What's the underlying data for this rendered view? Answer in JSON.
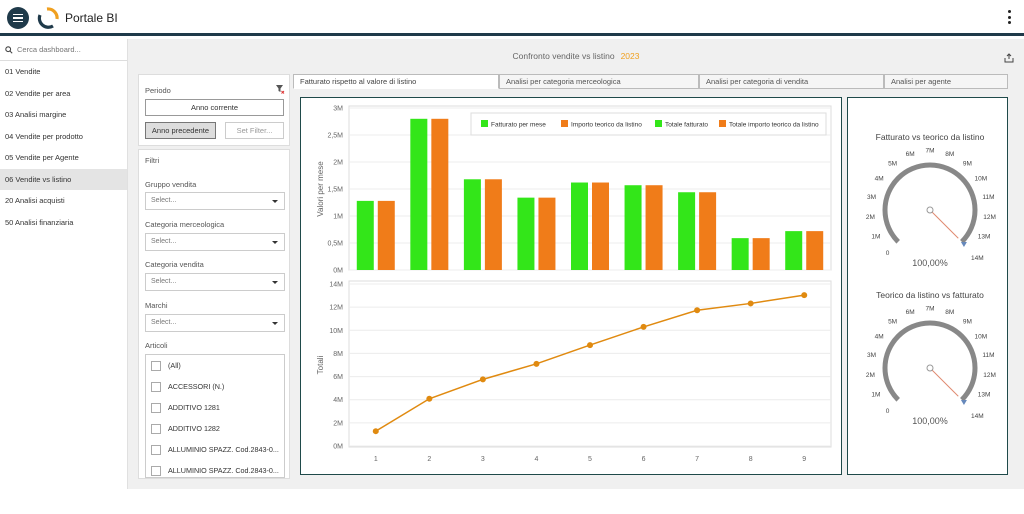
{
  "app": {
    "title": "Portale BI"
  },
  "search": {
    "placeholder": "Cerca dashboard..."
  },
  "sidebar": {
    "items": [
      {
        "label": "01 Vendite"
      },
      {
        "label": "02 Vendite per area"
      },
      {
        "label": "03 Analisi margine"
      },
      {
        "label": "04 Vendite per prodotto"
      },
      {
        "label": "05 Vendite per Agente"
      },
      {
        "label": "06 Vendite vs listino",
        "active": true
      },
      {
        "label": "20 Analisi acquisti"
      },
      {
        "label": "50 Analisi finanziaria"
      }
    ]
  },
  "header": {
    "title": "Confronto vendite vs listino",
    "year": "2023"
  },
  "periodo": {
    "label": "Periodo",
    "current": "Anno corrente",
    "previous": "Anno precedente",
    "set_filter": "Set Filter..."
  },
  "filtri": {
    "title": "Filtri",
    "gruppo": {
      "label": "Gruppo vendita",
      "value": "Select..."
    },
    "categoria_merc": {
      "label": "Categoria merceologica",
      "value": "Select..."
    },
    "categoria_vend": {
      "label": "Categoria vendita",
      "value": "Select..."
    },
    "marchi": {
      "label": "Marchi",
      "value": "Select..."
    },
    "articoli": {
      "label": "Articoli",
      "items": [
        "(All)",
        "ACCESSORI (N.)",
        "ADDITIVO 1281",
        "ADDITIVO 1282",
        "ALLUMINIO SPAZZ. Cod.2843-0...",
        "ALLUMINIO SPAZZ. Cod.2843-0..."
      ]
    }
  },
  "tabs": [
    {
      "label": "Fatturato rispetto al valore di listino",
      "active": true
    },
    {
      "label": "Analisi per categoria merceologica"
    },
    {
      "label": "Analisi per categoria di vendita"
    },
    {
      "label": "Analisi per agente"
    }
  ],
  "colors": {
    "green": "#33e619",
    "orange": "#f07c19",
    "line": "#e08a10",
    "header_bar": "#1f3a4a",
    "accent_year": "#f0a020"
  },
  "chart_data": [
    {
      "type": "bar",
      "ylabel": "Valori per mese",
      "categories": [
        "1",
        "2",
        "3",
        "4",
        "5",
        "6",
        "7",
        "8",
        "9"
      ],
      "ylim": [
        0,
        3000000
      ],
      "y_ticks": [
        "0M",
        "0,5M",
        "1M",
        "1,5M",
        "2M",
        "2,5M",
        "3M"
      ],
      "series": [
        {
          "name": "Fatturato per mese",
          "color": "#33e619",
          "values": [
            1280000,
            2800000,
            1680000,
            1340000,
            1620000,
            1570000,
            1440000,
            590000,
            720000
          ]
        },
        {
          "name": "Importo teorico da listino",
          "color": "#f07c19",
          "values": [
            1280000,
            2800000,
            1680000,
            1340000,
            1620000,
            1570000,
            1440000,
            590000,
            720000
          ]
        }
      ],
      "legend": [
        {
          "name": "Fatturato per mese",
          "color": "#33e619"
        },
        {
          "name": "Importo teorico da listino",
          "color": "#f07c19"
        },
        {
          "name": "Totale fatturato",
          "color": "#33e619"
        },
        {
          "name": "Totale importo teorico da listino",
          "color": "#f07c19"
        }
      ],
      "legend_position": "top-right",
      "grid": true
    },
    {
      "type": "line",
      "ylabel": "Totali",
      "x": [
        "1",
        "2",
        "3",
        "4",
        "5",
        "6",
        "7",
        "8",
        "9"
      ],
      "ylim": [
        0,
        14000000
      ],
      "y_ticks": [
        "0M",
        "2M",
        "4M",
        "6M",
        "8M",
        "10M",
        "12M",
        "14M"
      ],
      "series": [
        {
          "color": "#e08a10",
          "values": [
            1280000,
            4080000,
            5760000,
            7100000,
            8720000,
            10290000,
            11730000,
            12320000,
            13040000
          ]
        }
      ],
      "grid": true
    }
  ],
  "gauges": [
    {
      "title": "Fatturato vs teorico da listino",
      "value_label": "100,00%",
      "value": 1.0,
      "max_label_outer": "14M",
      "ticks": [
        "0",
        "1M",
        "2M",
        "3M",
        "4M",
        "5M",
        "6M",
        "7M",
        "8M",
        "9M",
        "10M",
        "11M",
        "12M",
        "13M",
        "14M"
      ]
    },
    {
      "title": "Teorico da listino vs fatturato",
      "value_label": "100,00%",
      "value": 1.0,
      "max_label_outer": "14M",
      "ticks": [
        "0",
        "1M",
        "2M",
        "3M",
        "4M",
        "5M",
        "6M",
        "7M",
        "8M",
        "9M",
        "10M",
        "11M",
        "12M",
        "13M",
        "14M"
      ]
    }
  ]
}
